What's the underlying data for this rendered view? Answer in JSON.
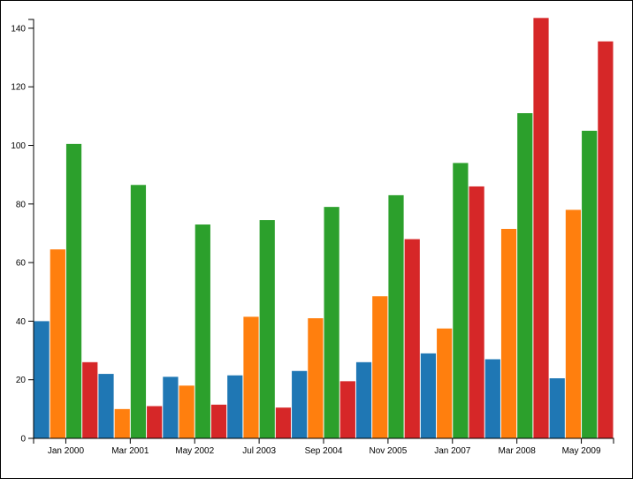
{
  "chart_data": {
    "type": "bar",
    "title": "",
    "xlabel": "",
    "ylabel": "",
    "categories": [
      "Jan 2000",
      "Mar 2001",
      "May 2002",
      "Jul 2003",
      "Sep 2004",
      "Nov 2005",
      "Jan 2007",
      "Mar 2008",
      "May 2009"
    ],
    "ylim": [
      0,
      143
    ],
    "yticks": [
      0,
      20,
      40,
      60,
      80,
      100,
      120,
      140
    ],
    "grid": false,
    "legend": "none",
    "series": [
      {
        "color": "#1f77b4",
        "values": [
          40,
          22,
          21,
          21.5,
          23,
          26,
          29,
          27,
          20.5
        ]
      },
      {
        "color": "#ff7f0e",
        "values": [
          64.5,
          10,
          18,
          41.5,
          41,
          48.5,
          37.5,
          71.5,
          78
        ]
      },
      {
        "color": "#2ca02c",
        "values": [
          100.5,
          86.5,
          73,
          74.5,
          79,
          83,
          94,
          111,
          105
        ]
      },
      {
        "color": "#d62728",
        "values": [
          26,
          11,
          11.5,
          10.5,
          19.5,
          68,
          86,
          143.5,
          135.5
        ]
      }
    ]
  }
}
